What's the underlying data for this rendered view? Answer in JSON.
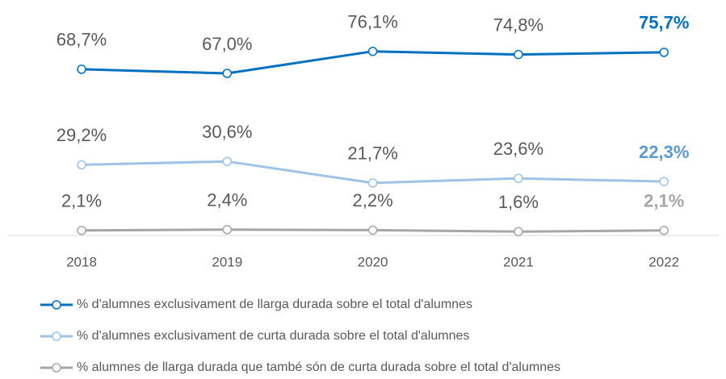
{
  "chart_data": {
    "type": "line",
    "categories": [
      "2018",
      "2019",
      "2020",
      "2021",
      "2022"
    ],
    "series": [
      {
        "name": "% d'alumnes exclusivament de llarga durada sobre el total d'alumnes",
        "color": "#0070c0",
        "values": [
          68.7,
          67.0,
          76.1,
          74.8,
          75.7
        ],
        "value_labels": [
          "68,7%",
          "67,0%",
          "76,1%",
          "74,8%",
          "75,7%"
        ]
      },
      {
        "name": "% d'alumnes exclusivament de curta durada sobre el total d'alumnes",
        "color": "#9dc3e6",
        "values": [
          29.2,
          30.6,
          21.7,
          23.6,
          22.3
        ],
        "value_labels": [
          "29,2%",
          "30,6%",
          "21,7%",
          "23,6%",
          "22,3%"
        ]
      },
      {
        "name": "% alumnes de llarga durada que també són de curta durada sobre el total d'alumnes",
        "color": "#a6a6a6",
        "values": [
          2.1,
          2.4,
          2.2,
          1.6,
          2.1
        ],
        "value_labels": [
          "2,1%",
          "2,4%",
          "2,2%",
          "1,6%",
          "2,1%"
        ]
      }
    ],
    "ylim": [
      0,
      95
    ],
    "grid": false
  }
}
